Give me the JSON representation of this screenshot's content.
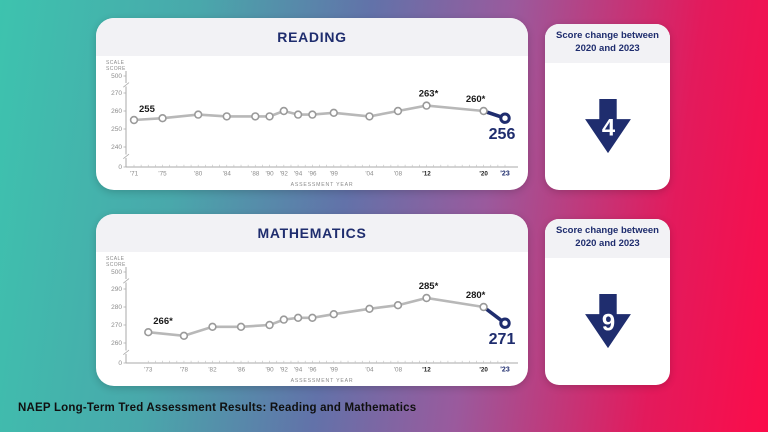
{
  "caption": "NAEP Long-Term Tred Assessment Results: Reading and Mathematics",
  "colors": {
    "navy": "#1f2d6e",
    "line_gray": "#b8b8b8",
    "marker_stroke": "#9a9a9a",
    "axis_gray": "#aaaaaa",
    "tick_text": "#8b8b8b",
    "minor_tick": "#c4c4c4",
    "label_black": "#1a1a1a",
    "emphasis_black": "#222222",
    "header_strip": "#f2f2f5",
    "gradient_left": "#3dc3ae",
    "gradient_mid": "#6272a9",
    "gradient_right": "#fb0c4a"
  },
  "chart_data": [
    {
      "type": "line",
      "title": "READING",
      "ylabel": "SCALE SCORE",
      "xlabel": "ASSESSMENT YEAR",
      "y_ticks": [
        500,
        270,
        260,
        250,
        240,
        0
      ],
      "visible_range": [
        240,
        270
      ],
      "years": [
        1971,
        1975,
        1980,
        1984,
        1988,
        1990,
        1992,
        1994,
        1996,
        1999,
        2004,
        2008,
        2012,
        2020,
        2023
      ],
      "x_labels": [
        "'71",
        "'75",
        "'80",
        "'84",
        "'88",
        "'90",
        "'92",
        "'94",
        "'96",
        "'99",
        "'04",
        "'08",
        "'12",
        "'20",
        "'23"
      ],
      "values": [
        255,
        256,
        258,
        257,
        257,
        257,
        260,
        258,
        258,
        259,
        257,
        260,
        263,
        260,
        256
      ],
      "point_labels": {
        "1971": "255",
        "2012": "263*",
        "2020": "260*",
        "2023": "256"
      },
      "emphasized_years": [
        2012,
        2020
      ]
    },
    {
      "type": "line",
      "title": "MATHEMATICS",
      "ylabel": "SCALE SCORE",
      "xlabel": "ASSESSMENT YEAR",
      "y_ticks": [
        500,
        290,
        280,
        270,
        260,
        0
      ],
      "visible_range": [
        260,
        290
      ],
      "years": [
        1973,
        1978,
        1982,
        1986,
        1990,
        1992,
        1994,
        1996,
        1999,
        2004,
        2008,
        2012,
        2020,
        2023
      ],
      "x_labels": [
        "'73",
        "'78",
        "'82",
        "'86",
        "'90",
        "'92",
        "'94",
        "'96",
        "'99",
        "'04",
        "'08",
        "'12",
        "'20",
        "'23"
      ],
      "values": [
        266,
        264,
        269,
        269,
        270,
        273,
        274,
        274,
        276,
        279,
        281,
        285,
        280,
        271
      ],
      "point_labels": {
        "1973": "266*",
        "2012": "285*",
        "2020": "280*",
        "2023": "271"
      },
      "emphasized_years": [
        2012,
        2020
      ]
    }
  ],
  "score_cards": [
    {
      "header_line1": "Score change between",
      "header_line2": "2020 and 2023",
      "value": "4",
      "direction": "down"
    },
    {
      "header_line1": "Score change between",
      "header_line2": "2020 and 2023",
      "value": "9",
      "direction": "down"
    }
  ]
}
